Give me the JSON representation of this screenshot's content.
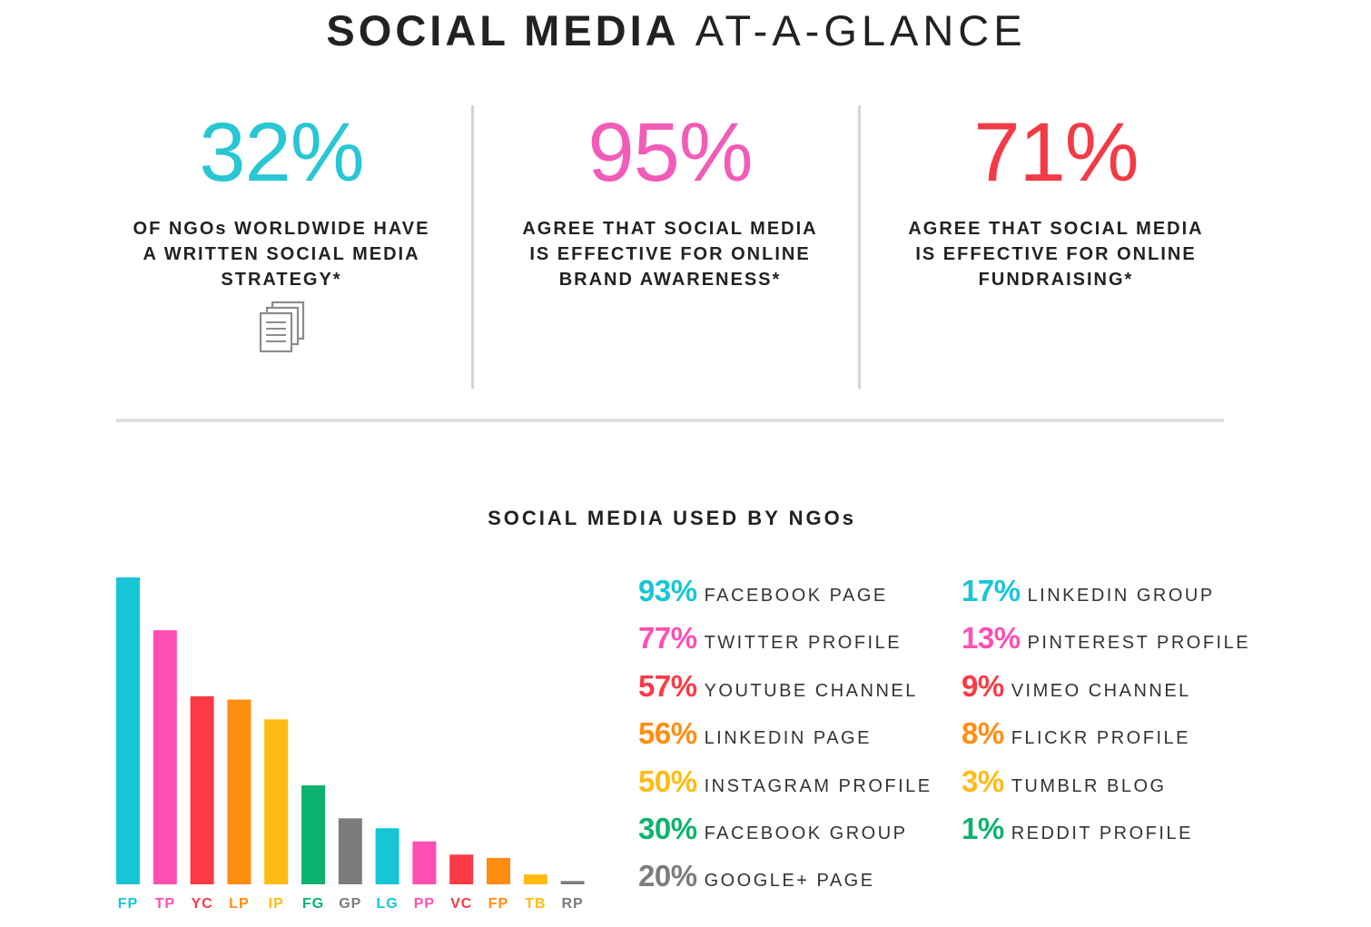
{
  "header": {
    "title_bold": "SOCIAL MEDIA",
    "title_light": "AT-A-GLANCE"
  },
  "stats": [
    {
      "value": "32%",
      "line1": "OF NGOs WORLDWIDE HAVE",
      "line2": "A WRITTEN SOCIAL MEDIA",
      "line3": "STRATEGY*",
      "color": "#29c6d4"
    },
    {
      "value": "95%",
      "line1": "AGREE THAT SOCIAL MEDIA",
      "line2": "IS EFFECTIVE FOR ONLINE",
      "line3": "BRAND AWARENESS*",
      "color": "#f25bb7"
    },
    {
      "value": "71%",
      "line1": "AGREE THAT SOCIAL MEDIA",
      "line2": "IS EFFECTIVE FOR ONLINE",
      "line3": "FUNDRAISING*",
      "color": "#f23b46"
    }
  ],
  "icons": {
    "document": "document-stack-icon"
  },
  "chart_data": {
    "type": "bar",
    "title": "SOCIAL MEDIA USED BY NGOs",
    "categories": [
      "FP",
      "TP",
      "YC",
      "LP",
      "IP",
      "FG",
      "GP",
      "LG",
      "PP",
      "VC",
      "FP",
      "TB",
      "RP"
    ],
    "values": [
      93,
      77,
      57,
      56,
      50,
      30,
      20,
      17,
      13,
      9,
      8,
      3,
      1
    ],
    "colors": [
      "#16c6d6",
      "#ff4fb4",
      "#fb3a46",
      "#ff8d10",
      "#ffbb14",
      "#0bb36e",
      "#7c7c7c",
      "#16c6d6",
      "#ff4fb4",
      "#fb3a46",
      "#ff8d10",
      "#ffbb14",
      "#7c7c7c"
    ],
    "ylim": [
      0,
      93
    ],
    "legend": [
      {
        "value": "93%",
        "label": "FACEBOOK PAGE",
        "color": "#16c6d6"
      },
      {
        "value": "77%",
        "label": "TWITTER PROFILE",
        "color": "#ff4fb4"
      },
      {
        "value": "57%",
        "label": "YOUTUBE CHANNEL",
        "color": "#fb3a46"
      },
      {
        "value": "56%",
        "label": "LINKEDIN PAGE",
        "color": "#ff8d10"
      },
      {
        "value": "50%",
        "label": "INSTAGRAM PROFILE",
        "color": "#ffbb14"
      },
      {
        "value": "30%",
        "label": "FACEBOOK GROUP",
        "color": "#0bb36e"
      },
      {
        "value": "20%",
        "label": "GOOGLE+ PAGE",
        "color": "#7c7c7c"
      },
      {
        "value": "17%",
        "label": "LINKEDIN GROUP",
        "color": "#16c6d6"
      },
      {
        "value": "13%",
        "label": "PINTEREST PROFILE",
        "color": "#ff4fb4"
      },
      {
        "value": "9%",
        "label": "VIMEO CHANNEL",
        "color": "#fb3a46"
      },
      {
        "value": "8%",
        "label": "FLICKR PROFILE",
        "color": "#ff8d10"
      },
      {
        "value": "3%",
        "label": "TUMBLR BLOG",
        "color": "#ffbb14"
      },
      {
        "value": "1%",
        "label": "REDDIT PROFILE",
        "color": "#0bb36e"
      }
    ]
  }
}
